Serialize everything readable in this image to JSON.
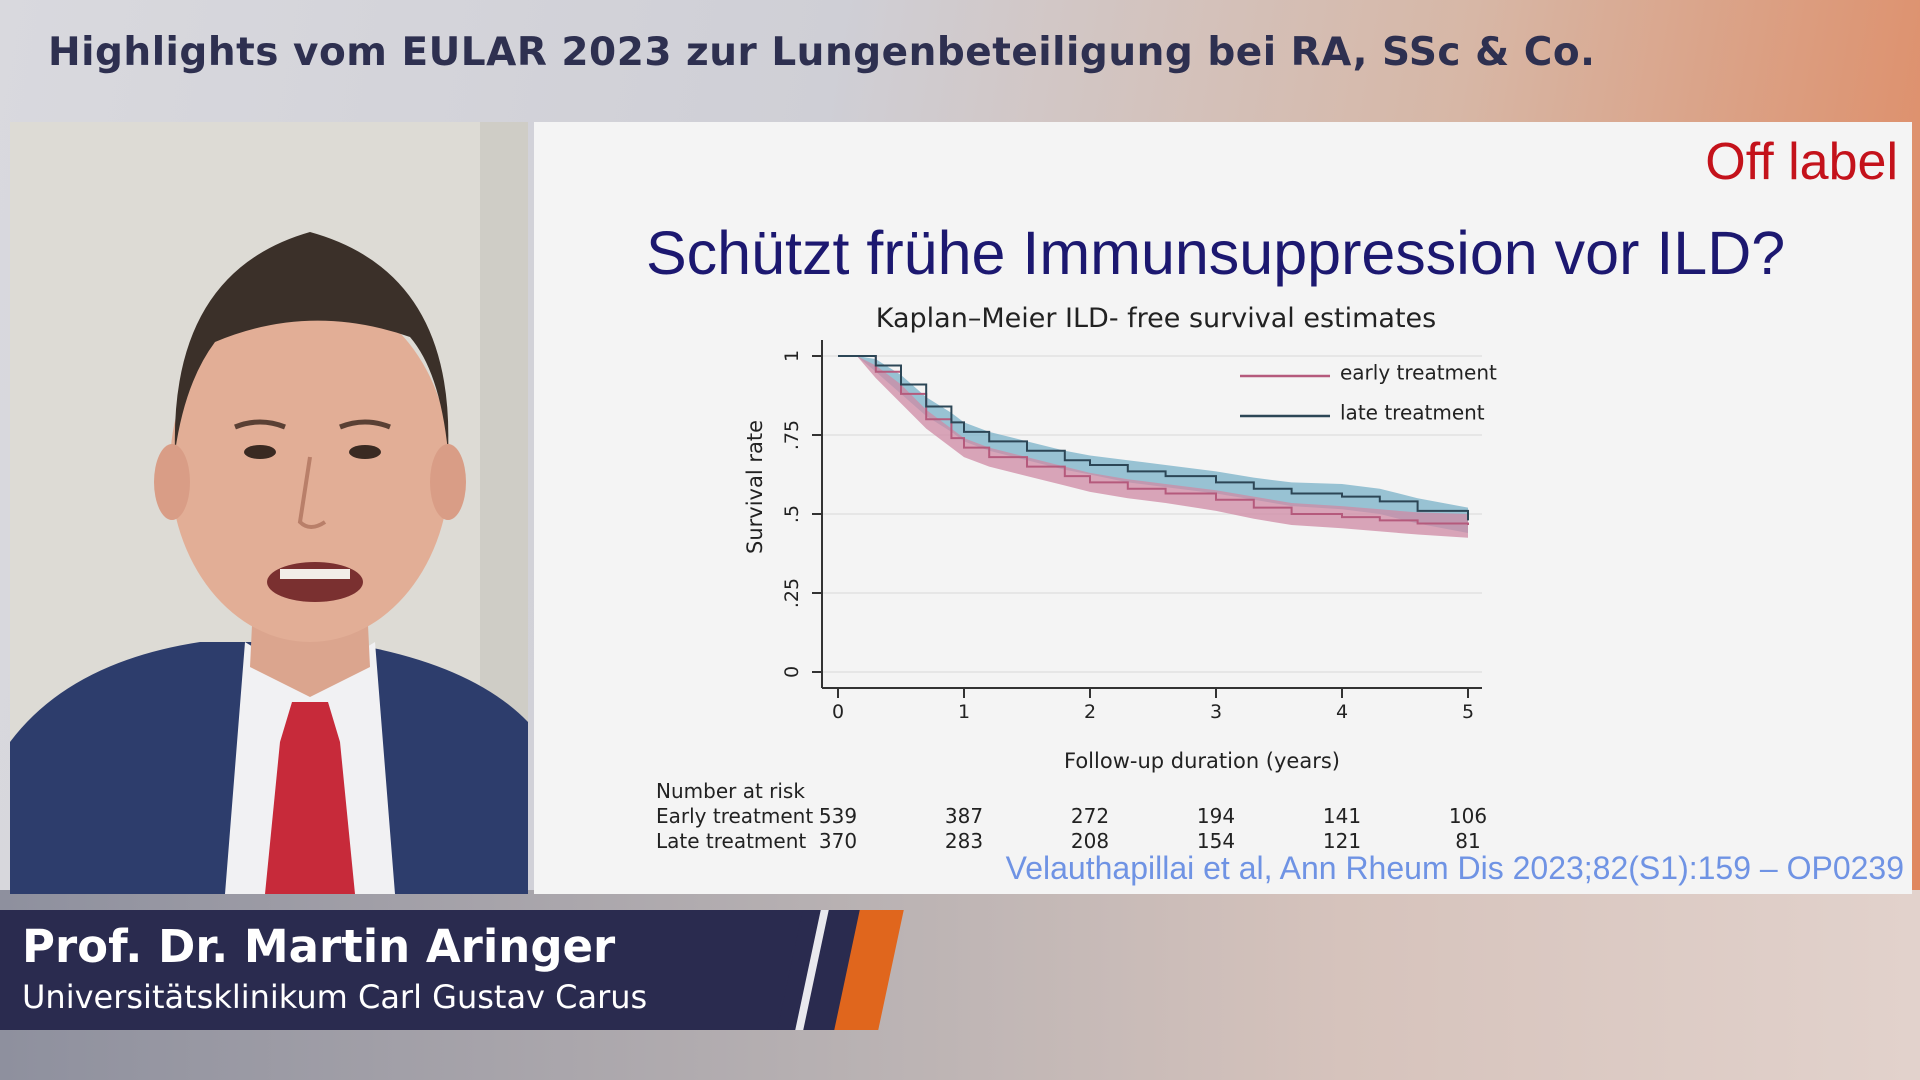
{
  "header": {
    "title": "Highlights vom EULAR 2023 zur Lungenbeteiligung bei RA, SSc & Co."
  },
  "slide": {
    "badge": "Off label",
    "title": "Schützt frühe Immunsuppression vor ILD?",
    "citation": "Velauthapillai et al, Ann Rheum Dis 2023;82(S1):159 – OP0239"
  },
  "speaker": {
    "name": "Prof. Dr. Martin Aringer",
    "affiliation": "Universitätsklinikum Carl Gustav Carus"
  },
  "colors": {
    "early": "#b55a7c",
    "early_ci": "#cf8aa4",
    "late": "#2c4656",
    "late_ci": "#79b2c8",
    "title": "#1c1870",
    "badge": "#c4121b",
    "citation": "#6f93e4",
    "lower_third": "#2a2b4f",
    "accent_orange": "#e0661d"
  },
  "chart_data": {
    "type": "line",
    "title": "Kaplan–Meier ILD- free survival estimates",
    "xlabel": "Follow-up duration (years)",
    "ylabel": "Survival rate",
    "xlim": [
      0,
      5
    ],
    "ylim": [
      0,
      1
    ],
    "xticks": [
      "0",
      "1",
      "2",
      "3",
      "4",
      "5"
    ],
    "yticks": [
      "0",
      ".25",
      ".5",
      ".75",
      "1"
    ],
    "ytick_values": [
      0,
      0.25,
      0.5,
      0.75,
      1
    ],
    "grid": true,
    "legend_position": "top-right",
    "series": [
      {
        "name": "early treatment",
        "x": [
          0,
          0.15,
          0.3,
          0.5,
          0.7,
          0.9,
          1.0,
          1.2,
          1.5,
          1.8,
          2.0,
          2.3,
          2.6,
          3.0,
          3.3,
          3.6,
          4.0,
          4.3,
          4.6,
          5.0
        ],
        "y": [
          1,
          1,
          0.95,
          0.88,
          0.8,
          0.74,
          0.71,
          0.68,
          0.65,
          0.62,
          0.6,
          0.58,
          0.565,
          0.545,
          0.52,
          0.5,
          0.49,
          0.48,
          0.47,
          0.465
        ],
        "ci_lower": [
          1,
          1,
          0.93,
          0.85,
          0.77,
          0.71,
          0.68,
          0.65,
          0.62,
          0.59,
          0.57,
          0.55,
          0.535,
          0.51,
          0.485,
          0.465,
          0.455,
          0.445,
          0.435,
          0.425
        ],
        "ci_upper": [
          1,
          1,
          0.97,
          0.91,
          0.83,
          0.77,
          0.74,
          0.71,
          0.68,
          0.65,
          0.63,
          0.61,
          0.595,
          0.575,
          0.555,
          0.535,
          0.525,
          0.515,
          0.505,
          0.5
        ]
      },
      {
        "name": "late treatment",
        "x": [
          0,
          0.15,
          0.3,
          0.5,
          0.7,
          0.9,
          1.0,
          1.2,
          1.5,
          1.8,
          2.0,
          2.3,
          2.6,
          3.0,
          3.3,
          3.6,
          4.0,
          4.3,
          4.6,
          5.0
        ],
        "y": [
          1,
          1,
          0.97,
          0.91,
          0.84,
          0.79,
          0.76,
          0.73,
          0.7,
          0.67,
          0.655,
          0.635,
          0.62,
          0.6,
          0.58,
          0.565,
          0.555,
          0.54,
          0.51,
          0.48
        ],
        "ci_lower": [
          1,
          1,
          0.95,
          0.88,
          0.81,
          0.76,
          0.73,
          0.7,
          0.67,
          0.64,
          0.625,
          0.6,
          0.585,
          0.565,
          0.545,
          0.525,
          0.515,
          0.5,
          0.47,
          0.44
        ],
        "ci_upper": [
          1,
          1,
          0.99,
          0.94,
          0.87,
          0.82,
          0.79,
          0.76,
          0.73,
          0.7,
          0.685,
          0.67,
          0.655,
          0.635,
          0.615,
          0.6,
          0.595,
          0.58,
          0.55,
          0.52
        ]
      }
    ],
    "risk_table": {
      "header": "Number at risk",
      "rows": [
        {
          "label": "Early treatment",
          "values": [
            "539",
            "387",
            "272",
            "194",
            "141",
            "106"
          ]
        },
        {
          "label": "Late treatment",
          "values": [
            "370",
            "283",
            "208",
            "154",
            "121",
            "81"
          ]
        }
      ]
    }
  }
}
